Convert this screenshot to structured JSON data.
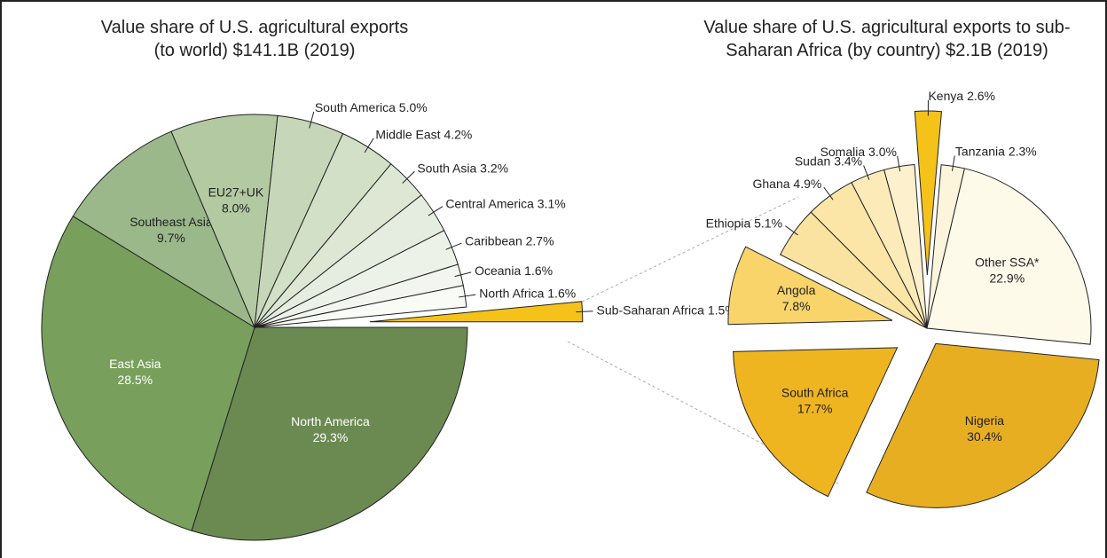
{
  "chart_data": [
    {
      "type": "pie",
      "title": "Value share of U.S. agricultural exports (to world) $141.1B (2019)",
      "categories": [
        "North America",
        "East Asia",
        "Southeast Asia",
        "EU27+UK",
        "South America",
        "Middle East",
        "South Asia",
        "Central America",
        "Caribbean",
        "Oceania",
        "North Africa",
        "Sub-Saharan Africa"
      ],
      "values": [
        29.3,
        28.5,
        9.7,
        8.0,
        5.0,
        4.2,
        3.2,
        3.1,
        2.7,
        1.6,
        1.6,
        1.5
      ],
      "value_labels": [
        "29.3%",
        "28.5%",
        "9.7%",
        "8.0%",
        "5.0%",
        "4.2%",
        "3.2%",
        "3.1%",
        "2.7%",
        "1.6%",
        "1.6%",
        "1.5%"
      ],
      "colors": [
        "#6b8a52",
        "#789f5c",
        "#9bb88a",
        "#b3c9a2",
        "#c6d6b8",
        "#d3e0c8",
        "#dde7d4",
        "#e5ece0",
        "#edf2e9",
        "#f3f6f0",
        "#f9fbf7",
        "#f5c21a"
      ]
    },
    {
      "type": "pie",
      "title": "Value share of U.S. agricultural exports to sub-Saharan Africa (by country) $2.1B (2019)",
      "categories": [
        "Tanzania",
        "Other SSA*",
        "Nigeria",
        "South Africa",
        "Angola",
        "Ethiopia",
        "Ghana",
        "Sudan",
        "Somalia",
        "Kenya"
      ],
      "values": [
        2.3,
        22.9,
        30.4,
        17.7,
        7.8,
        5.1,
        4.9,
        3.4,
        3.0,
        2.6
      ],
      "value_labels": [
        "2.3%",
        "22.9%",
        "30.4%",
        "17.7%",
        "7.8%",
        "5.1%",
        "4.9%",
        "3.4%",
        "3.0%",
        "2.6%"
      ],
      "colors": [
        "#fdf4dc",
        "#fefaea",
        "#e8ae22",
        "#efb520",
        "#f8d46a",
        "#fae3a0",
        "#fbe6a8",
        "#fcebb8",
        "#fdf0cc",
        "#f5c21a"
      ]
    }
  ]
}
